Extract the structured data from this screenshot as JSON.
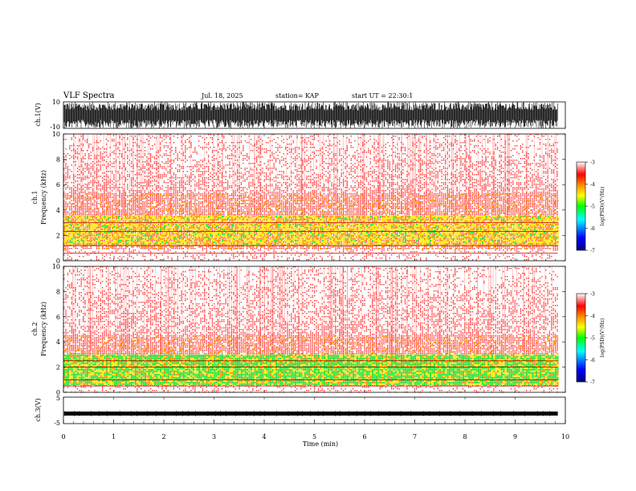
{
  "header": {
    "title": "VLF Spectra",
    "date": "Jul. 18, 2025",
    "station": "station= KAP",
    "start": "start UT = 22:30:1"
  },
  "chart_data": {
    "type": "heatmap",
    "title": "VLF Spectra",
    "xlabel": "Time (min)",
    "xlim": [
      0,
      10
    ],
    "xticks": [
      "0",
      "1",
      "2",
      "3",
      "4",
      "5",
      "6",
      "7",
      "8",
      "9",
      "10"
    ],
    "recorded_until_min": 9.85,
    "panels": [
      {
        "name": "ch1-waveform",
        "kind": "waveform",
        "ylabel": "ch.1(V)",
        "ylim": [
          -10,
          10
        ],
        "yticks": [
          "10",
          "-10"
        ],
        "amplitude_v": 10
      },
      {
        "name": "ch1-spectrogram",
        "kind": "spectrogram",
        "ylabel": "ch.1 Frequency (kHz)",
        "ylim": [
          0,
          10
        ],
        "yticks": [
          "0",
          "2",
          "4",
          "6",
          "8",
          "10"
        ],
        "strong_band_khz": [
          1.2,
          3.6
        ],
        "noisy_band_khz": [
          3.6,
          5.4
        ],
        "low_gap_khz": [
          0.0,
          1.0
        ],
        "lines_khz": [
          0.6,
          1.2,
          2.3,
          3.0
        ]
      },
      {
        "name": "ch2-spectrogram",
        "kind": "spectrogram",
        "ylabel": "ch.2 Frequency (kHz)",
        "ylim": [
          0,
          10
        ],
        "yticks": [
          "0",
          "2",
          "4",
          "6",
          "8",
          "10"
        ],
        "strong_band_khz": [
          0.6,
          3.0
        ],
        "noisy_band_khz": [
          3.0,
          4.6
        ],
        "low_gap_khz": [
          0.0,
          0.5
        ],
        "lines_khz": [
          0.5,
          1.0,
          2.0,
          2.5
        ]
      },
      {
        "name": "ch3-waveform",
        "kind": "waveform",
        "ylabel": "ch.3(V)",
        "ylim": [
          -5,
          5
        ],
        "yticks": [
          "5",
          "-5"
        ],
        "level_v": -1.2
      }
    ],
    "colorbars": [
      {
        "label": "log(PSD)(V²/Hz)",
        "range": [
          -7,
          -3
        ],
        "ticks": [
          "-3",
          "-4",
          "-5",
          "-6",
          "-7"
        ]
      },
      {
        "label": "log(PSD)(V²/Hz)",
        "range": [
          -7,
          -3
        ],
        "ticks": [
          "-3",
          "-4",
          "-5",
          "-6",
          "-7"
        ]
      }
    ],
    "colormap": [
      "#00007f",
      "#0000ff",
      "#00ffff",
      "#00ff00",
      "#ffff00",
      "#ff8000",
      "#ff0000",
      "#ffffff"
    ]
  }
}
